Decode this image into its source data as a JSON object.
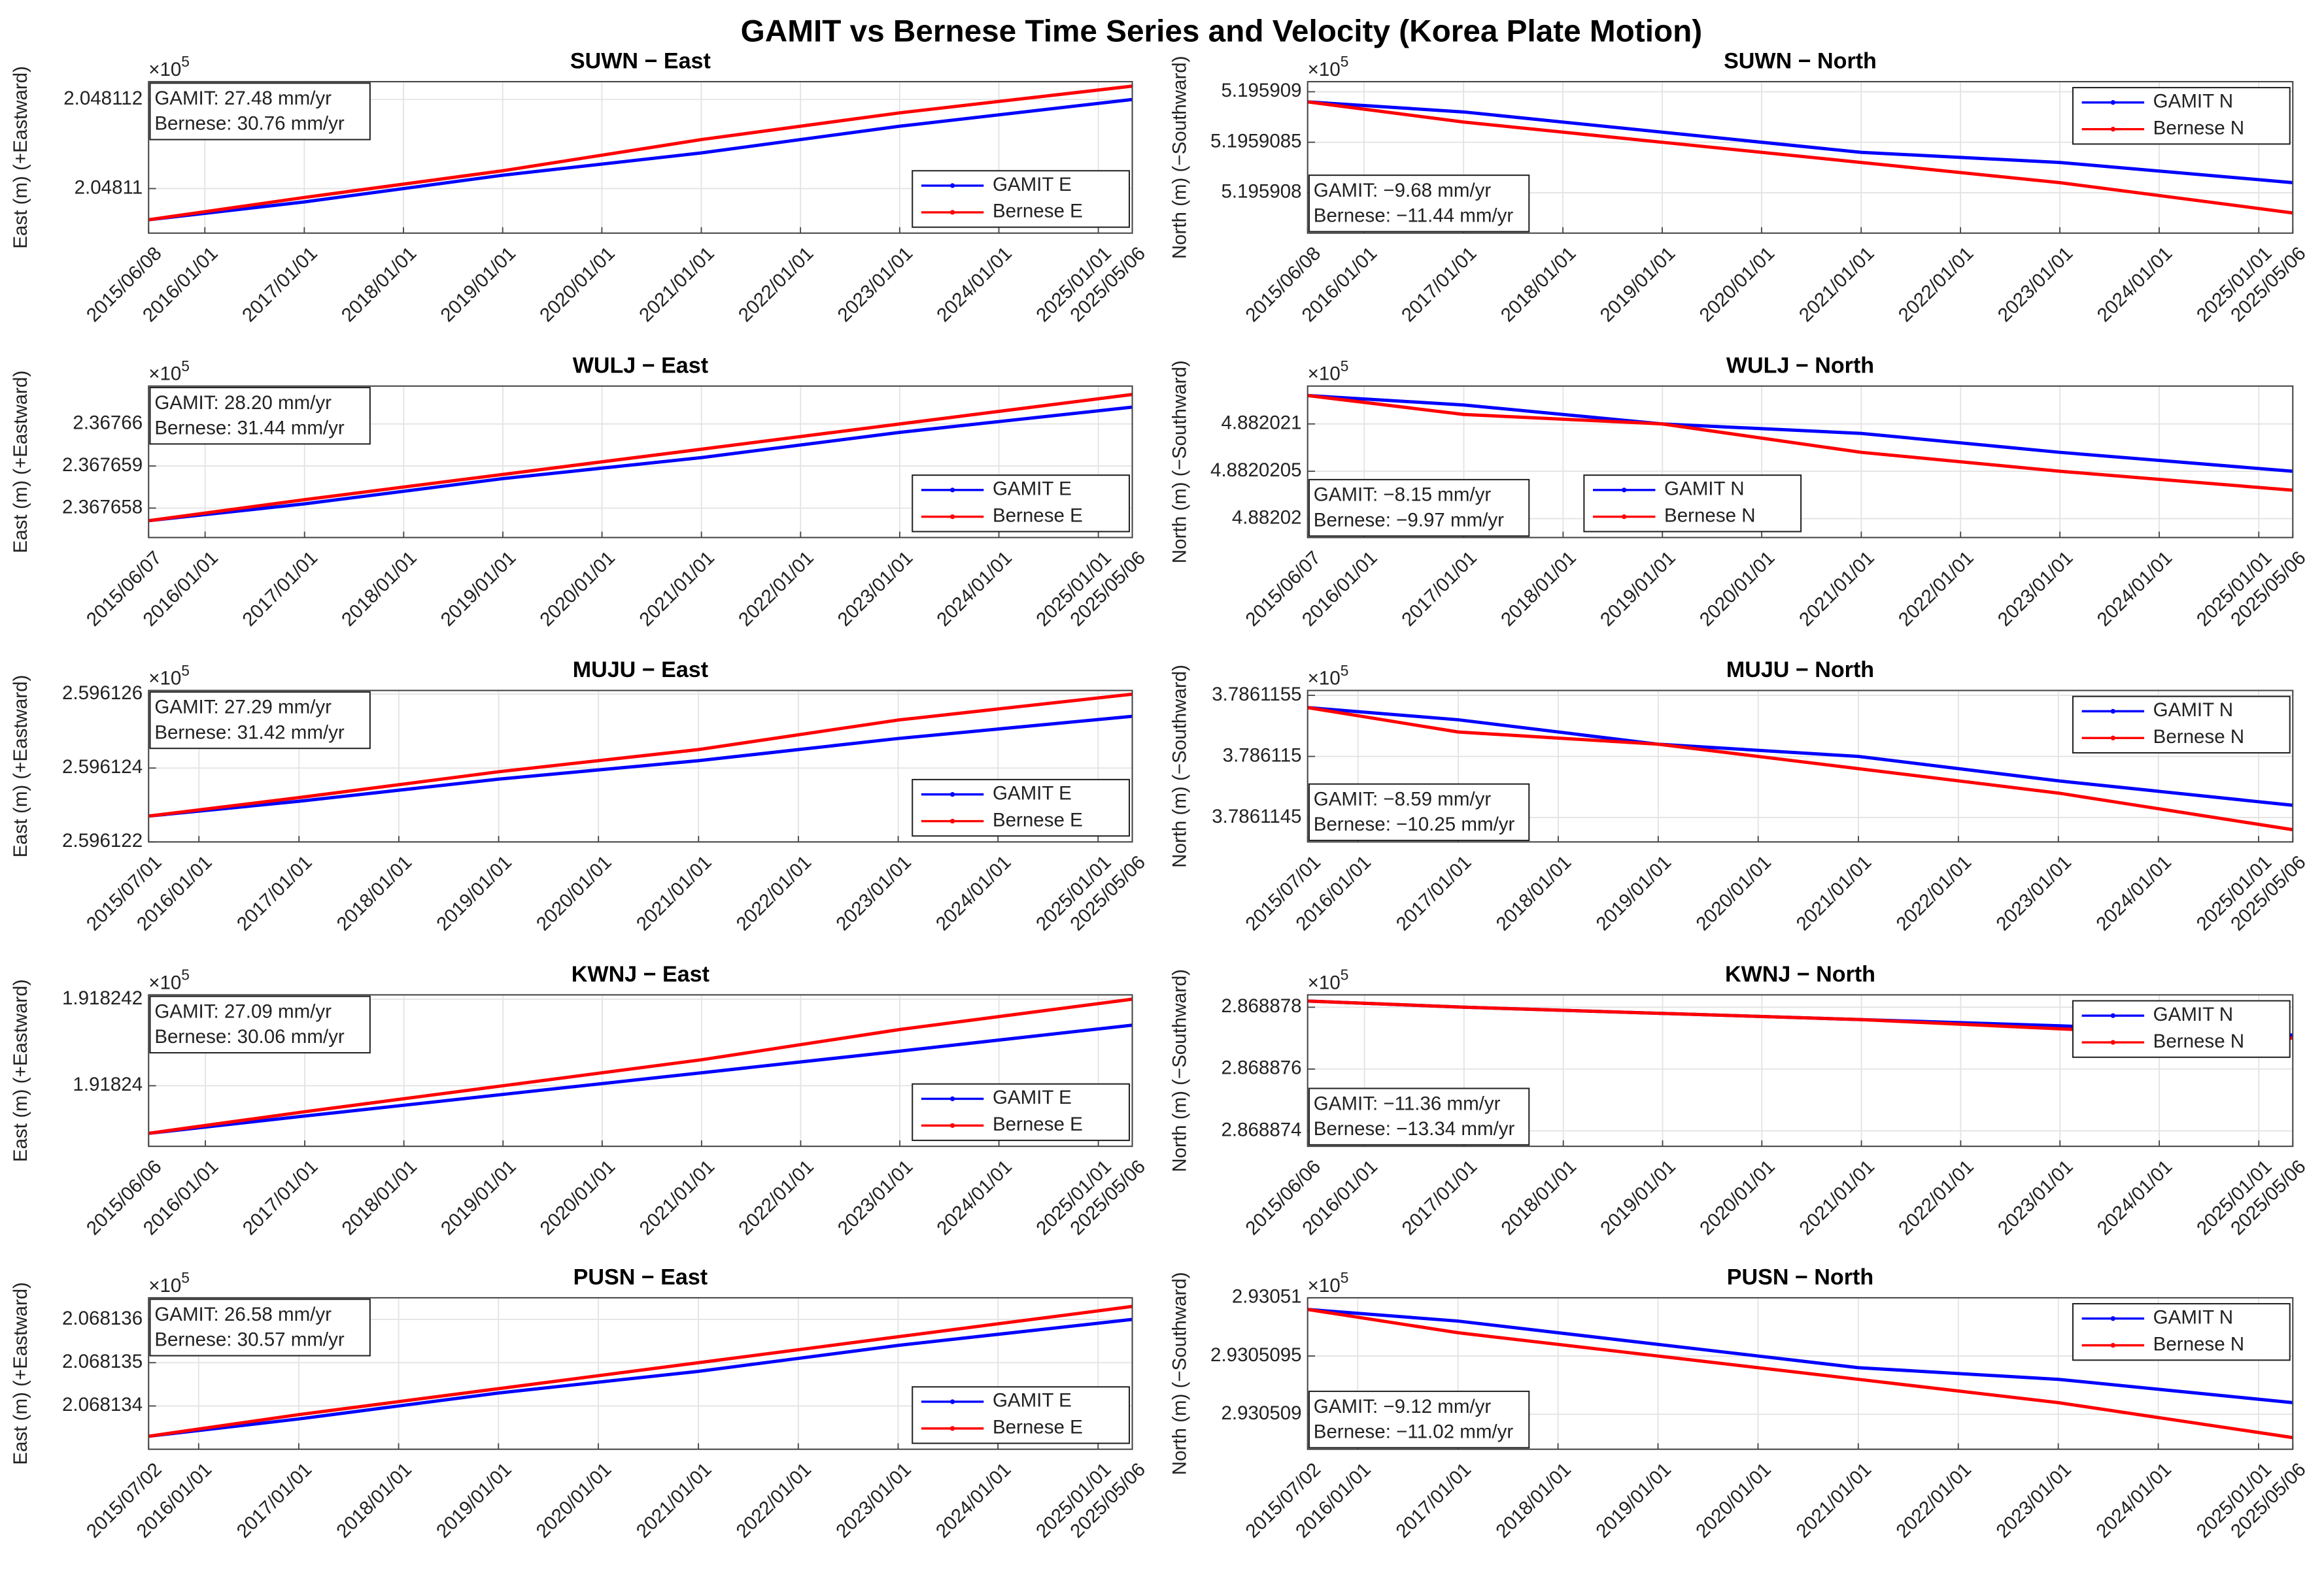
{
  "title": "GAMIT vs Bernese Time Series and Velocity (Korea Plate Motion)",
  "chart_data": [
    {
      "type": "line",
      "title": "SUWN − East",
      "ylabel": "East (m)  (+Eastward)",
      "y_multiplier": {
        "base": "×10",
        "exponent": "5"
      },
      "x": [
        "2015/06/08",
        "2017/01/01",
        "2019/01/01",
        "2021/01/01",
        "2023/01/01",
        "2025/05/06"
      ],
      "xlim": [
        "2015/06/08",
        "2025/05/06"
      ],
      "xticks": [
        "2015/06/08",
        "2016/01/01",
        "2017/01/01",
        "2018/01/01",
        "2019/01/01",
        "2020/01/01",
        "2021/01/01",
        "2022/01/01",
        "2023/01/01",
        "2024/01/01",
        "2025/01/01",
        "2025/05/06"
      ],
      "ylim": [
        2.048109,
        2.0481124
      ],
      "yticks": [
        2.04811,
        2.048112
      ],
      "series": [
        {
          "name": "GAMIT E",
          "color": "#0000ff",
          "values": [
            2.0481093,
            2.0481097,
            2.0481103,
            2.0481108,
            2.0481114,
            2.048112
          ]
        },
        {
          "name": "Bernese E",
          "color": "#ff0000",
          "values": [
            2.0481093,
            2.0481098,
            2.0481104,
            2.0481111,
            2.0481117,
            2.0481123
          ]
        }
      ],
      "annotation": [
        "GAMIT: 27.48 mm/yr",
        "Bernese: 30.76 mm/yr"
      ],
      "annotation_corner": "northwest",
      "legend": "southeast",
      "grid": true
    },
    {
      "type": "line",
      "title": "SUWN − North",
      "ylabel": "North (m)  (−Southward)",
      "y_multiplier": {
        "base": "×10",
        "exponent": "5"
      },
      "x": [
        "2015/06/08",
        "2017/01/01",
        "2019/01/01",
        "2021/01/01",
        "2023/01/01",
        "2025/05/06"
      ],
      "xlim": [
        "2015/06/08",
        "2025/05/06"
      ],
      "xticks": [
        "2015/06/08",
        "2016/01/01",
        "2017/01/01",
        "2018/01/01",
        "2019/01/01",
        "2020/01/01",
        "2021/01/01",
        "2022/01/01",
        "2023/01/01",
        "2024/01/01",
        "2025/01/01",
        "2025/05/06"
      ],
      "ylim": [
        5.1959076,
        5.1959091
      ],
      "yticks": [
        5.195908,
        5.1959085,
        5.195909
      ],
      "series": [
        {
          "name": "GAMIT N",
          "color": "#0000ff",
          "values": [
            5.1959089,
            5.1959088,
            5.1959086,
            5.1959084,
            5.1959083,
            5.1959081
          ]
        },
        {
          "name": "Bernese N",
          "color": "#ff0000",
          "values": [
            5.1959089,
            5.1959087,
            5.1959085,
            5.1959083,
            5.1959081,
            5.1959078
          ]
        }
      ],
      "annotation": [
        "GAMIT: −9.68 mm/yr",
        "Bernese: −11.44 mm/yr"
      ],
      "annotation_corner": "southwest",
      "legend": "northeast",
      "grid": true
    },
    {
      "type": "line",
      "title": "WULJ − East",
      "ylabel": "East (m)  (+Eastward)",
      "y_multiplier": {
        "base": "×10",
        "exponent": "5"
      },
      "x": [
        "2015/06/07",
        "2017/01/01",
        "2019/01/01",
        "2021/01/01",
        "2023/01/01",
        "2025/05/06"
      ],
      "xlim": [
        "2015/06/07",
        "2025/05/06"
      ],
      "xticks": [
        "2015/06/07",
        "2016/01/01",
        "2017/01/01",
        "2018/01/01",
        "2019/01/01",
        "2020/01/01",
        "2021/01/01",
        "2022/01/01",
        "2023/01/01",
        "2024/01/01",
        "2025/01/01",
        "2025/05/06"
      ],
      "ylim": [
        2.3676573,
        2.3676609
      ],
      "yticks": [
        2.367658,
        2.367659,
        2.36766
      ],
      "series": [
        {
          "name": "GAMIT E",
          "color": "#0000ff",
          "values": [
            2.3676577,
            2.3676581,
            2.3676587,
            2.3676592,
            2.3676598,
            2.3676604
          ]
        },
        {
          "name": "Bernese E",
          "color": "#ff0000",
          "values": [
            2.3676577,
            2.3676582,
            2.3676588,
            2.3676594,
            2.36766,
            2.3676607
          ]
        }
      ],
      "annotation": [
        "GAMIT: 28.20 mm/yr",
        "Bernese: 31.44 mm/yr"
      ],
      "annotation_corner": "northwest",
      "legend": "southeast",
      "grid": true
    },
    {
      "type": "line",
      "title": "WULJ − North",
      "ylabel": "North (m)  (−Southward)",
      "y_multiplier": {
        "base": "×10",
        "exponent": "5"
      },
      "x": [
        "2015/06/07",
        "2017/01/01",
        "2019/01/01",
        "2021/01/01",
        "2023/01/01",
        "2025/05/06"
      ],
      "xlim": [
        "2015/06/07",
        "2025/05/06"
      ],
      "xticks": [
        "2015/06/07",
        "2016/01/01",
        "2017/01/01",
        "2018/01/01",
        "2019/01/01",
        "2020/01/01",
        "2021/01/01",
        "2022/01/01",
        "2023/01/01",
        "2024/01/01",
        "2025/01/01",
        "2025/05/06"
      ],
      "ylim": [
        4.8820198,
        4.8820214
      ],
      "yticks": [
        4.88202,
        4.8820205,
        4.882021
      ],
      "series": [
        {
          "name": "GAMIT N",
          "color": "#0000ff",
          "values": [
            4.8820213,
            4.8820212,
            4.882021,
            4.8820209,
            4.8820207,
            4.8820205
          ]
        },
        {
          "name": "Bernese N",
          "color": "#ff0000",
          "values": [
            4.8820213,
            4.8820211,
            4.882021,
            4.8820207,
            4.8820205,
            4.8820203
          ]
        }
      ],
      "annotation": [
        "GAMIT: −8.15 mm/yr",
        "Bernese: −9.97 mm/yr"
      ],
      "annotation_corner": "southwest",
      "legend": "south",
      "grid": true
    },
    {
      "type": "line",
      "title": "MUJU − East",
      "ylabel": "East (m)  (+Eastward)",
      "y_multiplier": {
        "base": "×10",
        "exponent": "5"
      },
      "x": [
        "2015/07/01",
        "2017/01/01",
        "2019/01/01",
        "2021/01/01",
        "2023/01/01",
        "2025/05/06"
      ],
      "xlim": [
        "2015/07/01",
        "2025/05/06"
      ],
      "xticks": [
        "2015/07/01",
        "2016/01/01",
        "2017/01/01",
        "2018/01/01",
        "2019/01/01",
        "2020/01/01",
        "2021/01/01",
        "2022/01/01",
        "2023/01/01",
        "2024/01/01",
        "2025/01/01",
        "2025/05/06"
      ],
      "ylim": [
        2.596122,
        2.5961261
      ],
      "yticks": [
        2.596122,
        2.596124,
        2.596126
      ],
      "series": [
        {
          "name": "GAMIT E",
          "color": "#0000ff",
          "values": [
            2.5961227,
            2.5961231,
            2.5961237,
            2.5961242,
            2.5961248,
            2.5961254
          ]
        },
        {
          "name": "Bernese E",
          "color": "#ff0000",
          "values": [
            2.5961227,
            2.5961232,
            2.5961239,
            2.5961245,
            2.5961253,
            2.596126
          ]
        }
      ],
      "annotation": [
        "GAMIT: 27.29 mm/yr",
        "Bernese: 31.42 mm/yr"
      ],
      "annotation_corner": "northwest",
      "legend": "southeast",
      "grid": true
    },
    {
      "type": "line",
      "title": "MUJU − North",
      "ylabel": "North (m)  (−Southward)",
      "y_multiplier": {
        "base": "×10",
        "exponent": "5"
      },
      "x": [
        "2015/07/01",
        "2017/01/01",
        "2019/01/01",
        "2021/01/01",
        "2023/01/01",
        "2025/05/06"
      ],
      "xlim": [
        "2015/07/01",
        "2025/05/06"
      ],
      "xticks": [
        "2015/07/01",
        "2016/01/01",
        "2017/01/01",
        "2018/01/01",
        "2019/01/01",
        "2020/01/01",
        "2021/01/01",
        "2022/01/01",
        "2023/01/01",
        "2024/01/01",
        "2025/01/01",
        "2025/05/06"
      ],
      "ylim": [
        3.7861143,
        3.78611554
      ],
      "yticks": [
        3.7861145,
        3.786115,
        3.7861155
      ],
      "series": [
        {
          "name": "GAMIT N",
          "color": "#0000ff",
          "values": [
            3.7861154,
            3.7861153,
            3.7861151,
            3.786115,
            3.7861148,
            3.7861146
          ]
        },
        {
          "name": "Bernese N",
          "color": "#ff0000",
          "values": [
            3.7861154,
            3.7861152,
            3.7861151,
            3.7861149,
            3.7861147,
            3.7861144
          ]
        }
      ],
      "annotation": [
        "GAMIT: −8.59 mm/yr",
        "Bernese: −10.25 mm/yr"
      ],
      "annotation_corner": "southwest",
      "legend": "northeast",
      "grid": true
    },
    {
      "type": "line",
      "title": "KWNJ − East",
      "ylabel": "East (m)  (+Eastward)",
      "y_multiplier": {
        "base": "×10",
        "exponent": "5"
      },
      "x": [
        "2015/06/06",
        "2017/01/01",
        "2019/01/01",
        "2021/01/01",
        "2023/01/01",
        "2025/05/06"
      ],
      "xlim": [
        "2015/06/06",
        "2025/05/06"
      ],
      "xticks": [
        "2015/06/06",
        "2016/01/01",
        "2017/01/01",
        "2018/01/01",
        "2019/01/01",
        "2020/01/01",
        "2021/01/01",
        "2022/01/01",
        "2023/01/01",
        "2024/01/01",
        "2025/01/01",
        "2025/05/06"
      ],
      "ylim": [
        1.9182386,
        1.9182421
      ],
      "yticks": [
        1.91824,
        1.918242
      ],
      "series": [
        {
          "name": "GAMIT E",
          "color": "#0000ff",
          "values": [
            1.9182389,
            1.9182393,
            1.9182398,
            1.9182403,
            1.9182408,
            1.9182414
          ]
        },
        {
          "name": "Bernese E",
          "color": "#ff0000",
          "values": [
            1.9182389,
            1.9182394,
            1.91824,
            1.9182406,
            1.9182413,
            1.918242
          ]
        }
      ],
      "annotation": [
        "GAMIT: 27.09 mm/yr",
        "Bernese: 30.06 mm/yr"
      ],
      "annotation_corner": "northwest",
      "legend": "southeast",
      "grid": true
    },
    {
      "type": "line",
      "title": "KWNJ − North",
      "ylabel": "North (m)  (−Southward)",
      "y_multiplier": {
        "base": "×10",
        "exponent": "5"
      },
      "x": [
        "2015/06/06",
        "2017/01/01",
        "2019/01/01",
        "2021/01/01",
        "2023/01/01",
        "2025/05/06"
      ],
      "xlim": [
        "2015/06/06",
        "2025/05/06"
      ],
      "xticks": [
        "2015/06/06",
        "2016/01/01",
        "2017/01/01",
        "2018/01/01",
        "2019/01/01",
        "2020/01/01",
        "2021/01/01",
        "2022/01/01",
        "2023/01/01",
        "2024/01/01",
        "2025/01/01",
        "2025/05/06"
      ],
      "ylim": [
        2.8688735,
        2.8688784
      ],
      "yticks": [
        2.868874,
        2.868876,
        2.868878
      ],
      "series": [
        {
          "name": "GAMIT N",
          "color": "#0000ff",
          "values": [
            2.8688782,
            2.868878,
            2.8688778,
            2.8688776,
            2.8688774,
            2.8688771
          ]
        },
        {
          "name": "Bernese N",
          "color": "#ff0000",
          "values": [
            2.8688782,
            2.868878,
            2.8688778,
            2.8688776,
            2.8688773,
            2.868877
          ]
        }
      ],
      "annotation": [
        "GAMIT: −11.36 mm/yr",
        "Bernese: −13.34 mm/yr"
      ],
      "annotation_corner": "southwest",
      "legend": "northeast",
      "grid": true
    },
    {
      "type": "line",
      "title": "PUSN − East",
      "ylabel": "East (m)  (+Eastward)",
      "y_multiplier": {
        "base": "×10",
        "exponent": "5"
      },
      "x": [
        "2015/07/02",
        "2017/01/01",
        "2019/01/01",
        "2021/01/01",
        "2023/01/01",
        "2025/05/06"
      ],
      "xlim": [
        "2015/07/02",
        "2025/05/06"
      ],
      "xticks": [
        "2015/07/02",
        "2016/01/01",
        "2017/01/01",
        "2018/01/01",
        "2019/01/01",
        "2020/01/01",
        "2021/01/01",
        "2022/01/01",
        "2023/01/01",
        "2024/01/01",
        "2025/01/01",
        "2025/05/06"
      ],
      "ylim": [
        2.068133,
        2.0681365
      ],
      "yticks": [
        2.068134,
        2.068135,
        2.068136
      ],
      "series": [
        {
          "name": "GAMIT E",
          "color": "#0000ff",
          "values": [
            2.0681333,
            2.0681337,
            2.0681343,
            2.0681348,
            2.0681354,
            2.068136
          ]
        },
        {
          "name": "Bernese E",
          "color": "#ff0000",
          "values": [
            2.0681333,
            2.0681338,
            2.0681344,
            2.068135,
            2.0681356,
            2.0681363
          ]
        }
      ],
      "annotation": [
        "GAMIT: 26.58 mm/yr",
        "Bernese: 30.57 mm/yr"
      ],
      "annotation_corner": "northwest",
      "legend": "southeast",
      "grid": true
    },
    {
      "type": "line",
      "title": "PUSN − North",
      "ylabel": "North (m)  (−Southward)",
      "y_multiplier": {
        "base": "×10",
        "exponent": "5"
      },
      "x": [
        "2015/07/02",
        "2017/01/01",
        "2019/01/01",
        "2021/01/01",
        "2023/01/01",
        "2025/05/06"
      ],
      "xlim": [
        "2015/07/02",
        "2025/05/06"
      ],
      "xticks": [
        "2015/07/02",
        "2016/01/01",
        "2017/01/01",
        "2018/01/01",
        "2019/01/01",
        "2020/01/01",
        "2021/01/01",
        "2022/01/01",
        "2023/01/01",
        "2024/01/01",
        "2025/01/01",
        "2025/05/06"
      ],
      "ylim": [
        2.9305087,
        2.93051
      ],
      "yticks": [
        2.930509,
        2.9305095,
        2.93051
      ],
      "series": [
        {
          "name": "GAMIT N",
          "color": "#0000ff",
          "values": [
            2.9305099,
            2.9305098,
            2.9305096,
            2.9305094,
            2.9305093,
            2.9305091
          ]
        },
        {
          "name": "Bernese N",
          "color": "#ff0000",
          "values": [
            2.9305099,
            2.9305097,
            2.9305095,
            2.9305093,
            2.9305091,
            2.9305088
          ]
        }
      ],
      "annotation": [
        "GAMIT: −9.12 mm/yr",
        "Bernese: −11.02 mm/yr"
      ],
      "annotation_corner": "southwest",
      "legend": "northeast",
      "grid": true
    }
  ]
}
